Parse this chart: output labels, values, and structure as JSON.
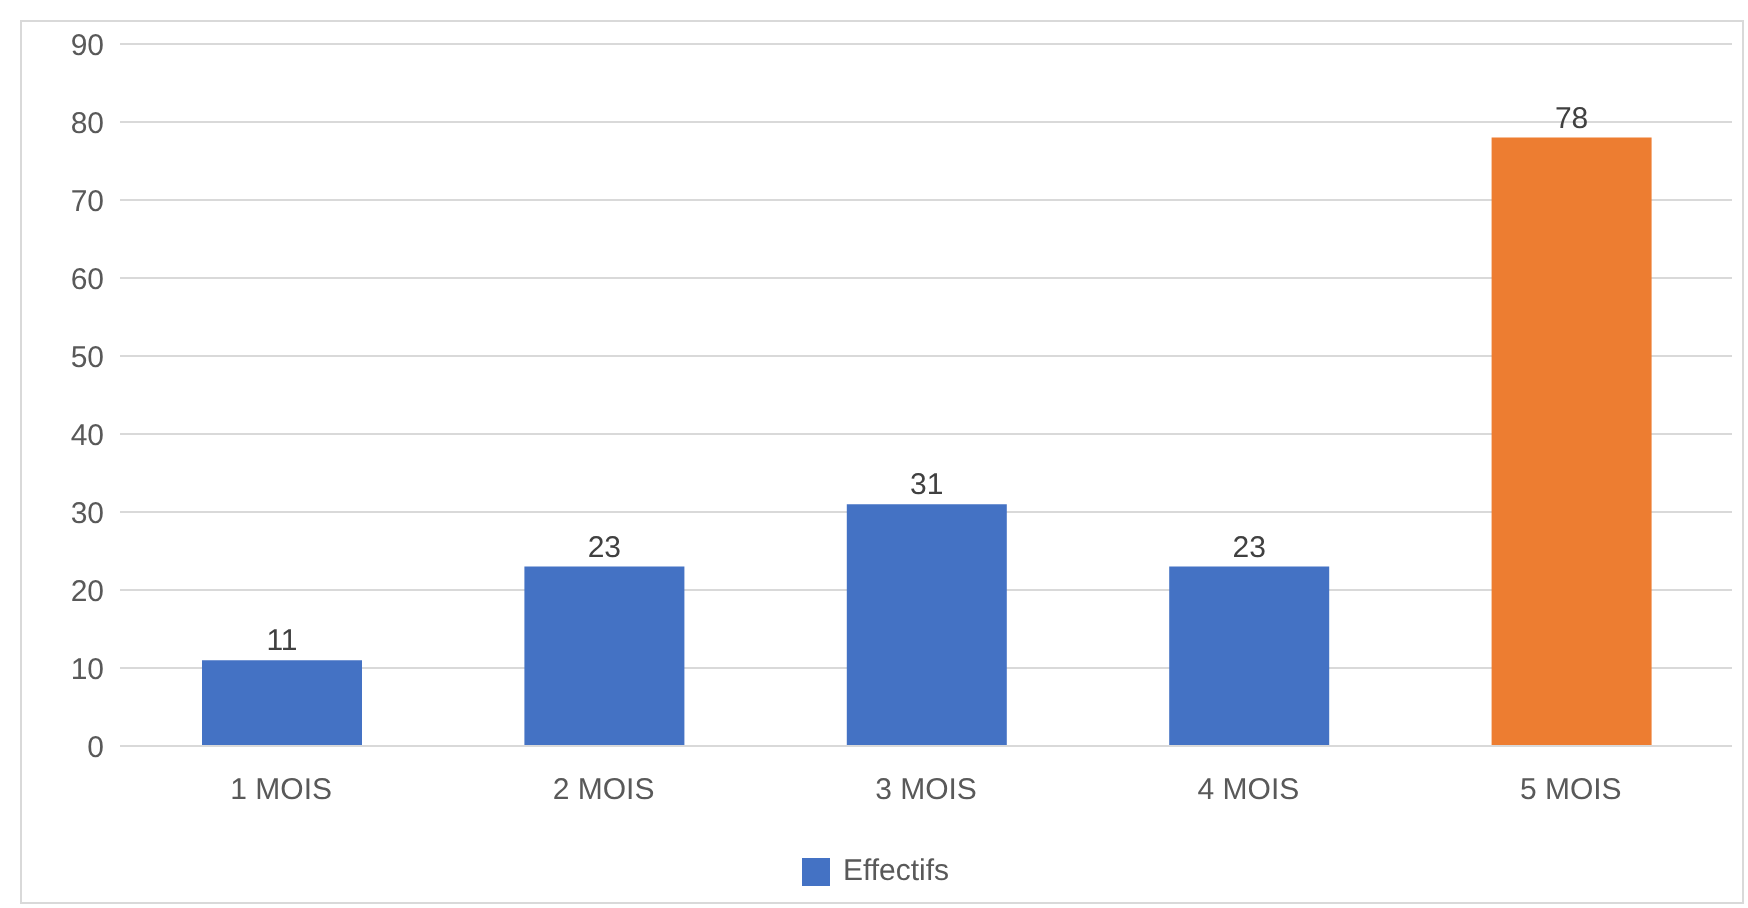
{
  "chart_data": {
    "type": "bar",
    "categories": [
      "1 MOIS",
      "2 MOIS",
      "3 MOIS",
      "4 MOIS",
      "5 MOIS"
    ],
    "series": [
      {
        "name": "Effectifs",
        "color": "#4472c4",
        "colors": [
          "#4472c4",
          "#4472c4",
          "#4472c4",
          "#4472c4",
          "#ed7d31"
        ],
        "values": [
          11,
          23,
          31,
          23,
          78
        ]
      }
    ],
    "ylim": [
      0,
      90
    ],
    "yticks": [
      0,
      10,
      20,
      30,
      40,
      50,
      60,
      70,
      80,
      90
    ],
    "grid": "y",
    "legend": "bottom",
    "data_labels": true
  }
}
